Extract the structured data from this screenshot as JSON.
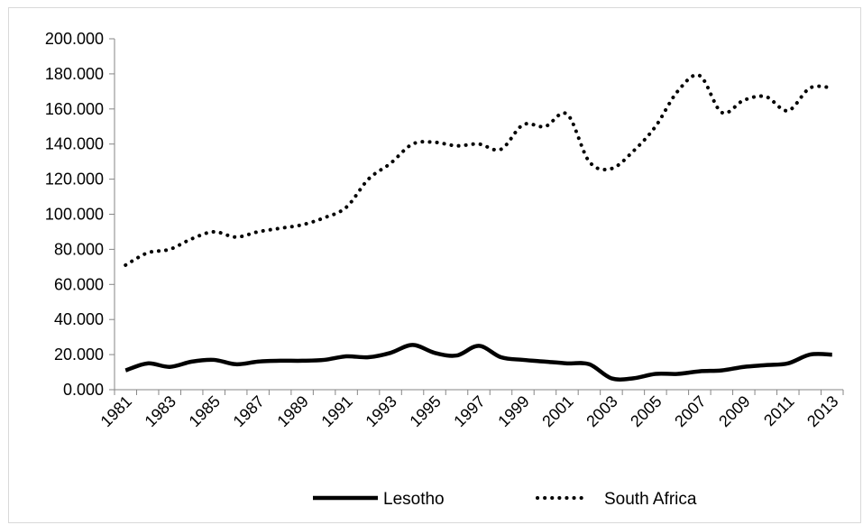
{
  "chart_data": {
    "type": "line",
    "title": "",
    "xlabel": "",
    "ylabel": "",
    "x": [
      "1981",
      "1982",
      "1983",
      "1984",
      "1985",
      "1986",
      "1987",
      "1988",
      "1989",
      "1990",
      "1991",
      "1992",
      "1993",
      "1994",
      "1995",
      "1996",
      "1997",
      "1998",
      "1999",
      "2000",
      "2001",
      "2002",
      "2003",
      "2004",
      "2005",
      "2006",
      "2007",
      "2008",
      "2009",
      "2010",
      "2011",
      "2012",
      "2013"
    ],
    "x_tick_labels": [
      "1981",
      "1983",
      "1985",
      "1987",
      "1989",
      "1991",
      "1993",
      "1995",
      "1997",
      "1999",
      "2001",
      "2003",
      "2005",
      "2007",
      "2009",
      "2011",
      "2013"
    ],
    "ylim": [
      0,
      200
    ],
    "y_ticks": [
      0,
      20,
      40,
      60,
      80,
      100,
      120,
      140,
      160,
      180,
      200
    ],
    "y_tick_labels": [
      "0.000",
      "20.000",
      "40.000",
      "60.000",
      "80.000",
      "100.000",
      "120.000",
      "140.000",
      "160.000",
      "180.000",
      "200.000"
    ],
    "series": [
      {
        "name": "Lesotho",
        "style": "solid",
        "color": "#000000",
        "values": [
          11,
          15,
          13,
          16,
          17,
          14.5,
          16,
          16.5,
          16.5,
          17,
          19,
          18.5,
          21,
          25.5,
          21,
          19.5,
          25,
          18.5,
          17,
          16,
          15,
          14.5,
          6.5,
          6.5,
          9,
          9,
          10.5,
          11,
          13,
          14,
          15,
          20,
          20
        ]
      },
      {
        "name": "South Africa",
        "style": "dotted",
        "color": "#000000",
        "values": [
          71,
          78,
          80,
          86,
          90,
          87,
          90,
          92,
          94,
          98,
          104,
          120,
          129,
          140,
          141,
          139,
          140,
          137,
          151,
          150,
          157,
          130,
          126,
          136,
          150,
          170,
          179,
          158,
          165,
          167,
          159,
          172,
          172
        ]
      }
    ],
    "legend": "bottom",
    "grid": false
  }
}
